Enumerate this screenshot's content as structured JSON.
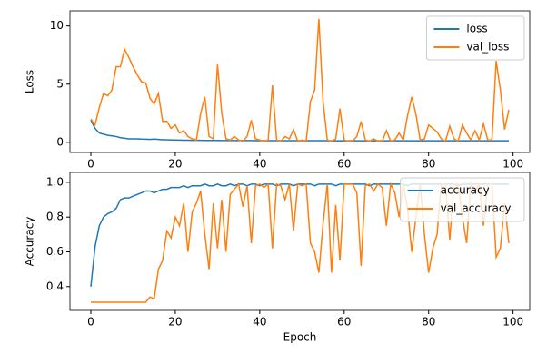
{
  "chart_data": [
    {
      "type": "line",
      "ylabel": "Loss",
      "x": [
        0,
        1,
        2,
        3,
        4,
        5,
        6,
        7,
        8,
        9,
        10,
        11,
        12,
        13,
        14,
        15,
        16,
        17,
        18,
        19,
        20,
        21,
        22,
        23,
        24,
        25,
        26,
        27,
        28,
        29,
        30,
        31,
        32,
        33,
        34,
        35,
        36,
        37,
        38,
        39,
        40,
        41,
        42,
        43,
        44,
        45,
        46,
        47,
        48,
        49,
        50,
        51,
        52,
        53,
        54,
        55,
        56,
        57,
        58,
        59,
        60,
        61,
        62,
        63,
        64,
        65,
        66,
        67,
        68,
        69,
        70,
        71,
        72,
        73,
        74,
        75,
        76,
        77,
        78,
        79,
        80,
        81,
        82,
        83,
        84,
        85,
        86,
        87,
        88,
        89,
        90,
        91,
        92,
        93,
        94,
        95,
        96,
        97,
        98,
        99
      ],
      "series": [
        {
          "name": "loss",
          "color": "#1f77b4",
          "values": [
            1.9,
            1.2,
            0.8,
            0.7,
            0.6,
            0.55,
            0.5,
            0.4,
            0.35,
            0.3,
            0.3,
            0.3,
            0.28,
            0.27,
            0.25,
            0.28,
            0.25,
            0.22,
            0.22,
            0.2,
            0.2,
            0.19,
            0.18,
            0.18,
            0.17,
            0.17,
            0.17,
            0.16,
            0.16,
            0.16,
            0.16,
            0.15,
            0.15,
            0.15,
            0.15,
            0.15,
            0.15,
            0.15,
            0.15,
            0.14,
            0.14,
            0.14,
            0.14,
            0.14,
            0.14,
            0.14,
            0.14,
            0.14,
            0.14,
            0.14,
            0.14,
            0.14,
            0.14,
            0.14,
            0.14,
            0.14,
            0.14,
            0.13,
            0.13,
            0.13,
            0.13,
            0.13,
            0.13,
            0.13,
            0.13,
            0.13,
            0.13,
            0.13,
            0.13,
            0.13,
            0.13,
            0.13,
            0.13,
            0.13,
            0.13,
            0.13,
            0.13,
            0.13,
            0.13,
            0.13,
            0.13,
            0.13,
            0.13,
            0.13,
            0.13,
            0.13,
            0.13,
            0.13,
            0.13,
            0.13,
            0.13,
            0.13,
            0.13,
            0.13,
            0.13,
            0.13,
            0.13,
            0.13,
            0.13,
            0.13
          ]
        },
        {
          "name": "val_loss",
          "color": "#ff7f0e",
          "values": [
            2.0,
            1.5,
            3,
            4.2,
            4.0,
            4.5,
            6.5,
            6.5,
            8.0,
            7.3,
            6.5,
            5.8,
            5.2,
            5.1,
            3.8,
            3.3,
            4.2,
            1.8,
            1.8,
            1.2,
            1.5,
            0.8,
            1.0,
            0.5,
            0.3,
            0.2,
            2.5,
            3.9,
            0.5,
            0.3,
            6.7,
            2.5,
            0.3,
            0.2,
            0.5,
            0.2,
            0.1,
            0.5,
            1.9,
            0.3,
            0.2,
            0.1,
            0.2,
            4.9,
            0.2,
            0.1,
            0.5,
            0.3,
            1.1,
            0.1,
            0.2,
            0.1,
            3.5,
            4.5,
            10.6,
            3.5,
            0.2,
            0.1,
            0.3,
            2.9,
            0.2,
            0.1,
            0.1,
            0.5,
            1.8,
            0.2,
            0.1,
            0.3,
            0.1,
            0.1,
            1.0,
            0.1,
            0.2,
            0.8,
            0.2,
            2.3,
            3.9,
            2.4,
            0.2,
            0.3,
            1.5,
            1.2,
            0.9,
            0.3,
            0.1,
            1.4,
            0.3,
            0.1,
            1.5,
            0.8,
            0.2,
            1.0,
            0.2,
            1.6,
            0.2,
            0.2,
            7.0,
            4.5,
            1.1,
            2.8
          ]
        }
      ],
      "xlim": [
        -4.95,
        103.95
      ],
      "xticks": [
        0,
        20,
        40,
        60,
        80,
        100
      ],
      "ylim": [
        -0.87,
        11.3
      ],
      "yticks": [
        0,
        5,
        10
      ],
      "legend": "upper right"
    },
    {
      "type": "line",
      "xlabel": "Epoch",
      "ylabel": "Accuracy",
      "x": [
        0,
        1,
        2,
        3,
        4,
        5,
        6,
        7,
        8,
        9,
        10,
        11,
        12,
        13,
        14,
        15,
        16,
        17,
        18,
        19,
        20,
        21,
        22,
        23,
        24,
        25,
        26,
        27,
        28,
        29,
        30,
        31,
        32,
        33,
        34,
        35,
        36,
        37,
        38,
        39,
        40,
        41,
        42,
        43,
        44,
        45,
        46,
        47,
        48,
        49,
        50,
        51,
        52,
        53,
        54,
        55,
        56,
        57,
        58,
        59,
        60,
        61,
        62,
        63,
        64,
        65,
        66,
        67,
        68,
        69,
        70,
        71,
        72,
        73,
        74,
        75,
        76,
        77,
        78,
        79,
        80,
        81,
        82,
        83,
        84,
        85,
        86,
        87,
        88,
        89,
        90,
        91,
        92,
        93,
        94,
        95,
        96,
        97,
        98,
        99
      ],
      "series": [
        {
          "name": "accuracy",
          "color": "#1f77b4",
          "values": [
            0.4,
            0.63,
            0.75,
            0.8,
            0.82,
            0.83,
            0.85,
            0.9,
            0.91,
            0.91,
            0.92,
            0.93,
            0.94,
            0.95,
            0.95,
            0.94,
            0.95,
            0.96,
            0.96,
            0.97,
            0.97,
            0.97,
            0.98,
            0.97,
            0.98,
            0.98,
            0.98,
            0.99,
            0.98,
            0.98,
            0.99,
            0.98,
            0.98,
            0.99,
            0.98,
            0.99,
            0.99,
            0.98,
            0.99,
            0.99,
            0.98,
            0.99,
            0.99,
            0.99,
            0.98,
            0.99,
            0.99,
            0.99,
            0.98,
            0.99,
            0.99,
            0.99,
            0.99,
            0.98,
            0.99,
            0.99,
            0.99,
            0.99,
            0.98,
            0.99,
            0.99,
            0.99,
            0.99,
            0.99,
            0.99,
            0.99,
            0.98,
            0.99,
            0.99,
            0.99,
            0.99,
            0.99,
            0.99,
            0.99,
            0.99,
            0.98,
            0.99,
            0.99,
            0.99,
            0.99,
            0.99,
            0.99,
            0.99,
            0.99,
            0.99,
            0.99,
            0.99,
            0.98,
            0.99,
            0.99,
            0.99,
            0.99,
            0.99,
            0.99,
            0.99,
            0.99,
            0.99,
            0.99,
            0.99,
            0.99
          ]
        },
        {
          "name": "val_accuracy",
          "color": "#ff7f0e",
          "values": [
            0.31,
            0.31,
            0.31,
            0.31,
            0.31,
            0.31,
            0.31,
            0.31,
            0.31,
            0.31,
            0.31,
            0.31,
            0.31,
            0.31,
            0.34,
            0.33,
            0.5,
            0.55,
            0.72,
            0.68,
            0.8,
            0.75,
            0.88,
            0.6,
            0.83,
            0.88,
            0.95,
            0.7,
            0.5,
            0.88,
            0.62,
            0.9,
            0.6,
            0.93,
            0.96,
            0.99,
            0.86,
            0.98,
            0.65,
            0.98,
            0.99,
            0.97,
            0.99,
            0.62,
            0.99,
            0.98,
            0.9,
            0.99,
            0.72,
            0.99,
            0.98,
            0.99,
            0.65,
            0.6,
            0.48,
            0.76,
            0.99,
            0.48,
            0.87,
            0.55,
            0.99,
            0.99,
            0.99,
            0.94,
            0.52,
            0.98,
            0.99,
            0.95,
            0.99,
            0.97,
            0.75,
            0.99,
            0.94,
            0.8,
            0.99,
            0.85,
            0.6,
            0.8,
            0.99,
            0.7,
            0.48,
            0.62,
            0.7,
            0.99,
            0.99,
            0.67,
            0.99,
            0.99,
            0.8,
            0.65,
            0.99,
            0.95,
            0.99,
            0.75,
            0.99,
            0.99,
            0.57,
            0.62,
            0.88,
            0.65
          ]
        }
      ],
      "xlim": [
        -4.95,
        103.95
      ],
      "xticks": [
        0,
        20,
        40,
        60,
        80,
        100
      ],
      "ylim": [
        0.263,
        1.057
      ],
      "yticks": [
        0.4,
        0.6,
        0.8,
        {
          "value": 1,
          "label": "1.0"
        }
      ],
      "legend": "upper right"
    }
  ]
}
